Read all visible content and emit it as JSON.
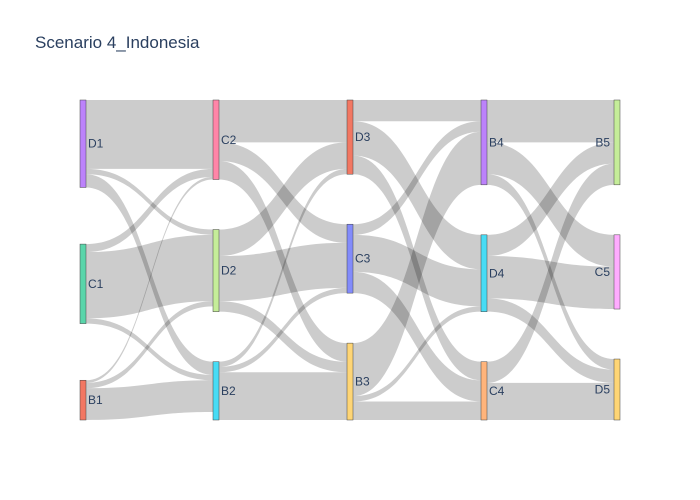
{
  "chart_data": {
    "type": "sankey",
    "title": "Scenario 4_Indonesia",
    "link_color": "#000000",
    "link_opacity": 0.2,
    "columns": [
      [
        "D1",
        "C1",
        "B1"
      ],
      [
        "C2",
        "D2",
        "B2"
      ],
      [
        "D3",
        "C3",
        "B3"
      ],
      [
        "B4",
        "D4",
        "C4"
      ],
      [
        "B5",
        "C5",
        "D5"
      ]
    ],
    "nodes": [
      {
        "name": "D1",
        "color": "#ab63fa"
      },
      {
        "name": "C1",
        "color": "#2fcb95"
      },
      {
        "name": "B1",
        "color": "#ef553b"
      },
      {
        "name": "C2",
        "color": "#ff6692"
      },
      {
        "name": "D2",
        "color": "#b6e880"
      },
      {
        "name": "B2",
        "color": "#19d3f3"
      },
      {
        "name": "D3",
        "color": "#ef553b"
      },
      {
        "name": "C3",
        "color": "#636efa"
      },
      {
        "name": "B3",
        "color": "#fecb52"
      },
      {
        "name": "B4",
        "color": "#ab63fa"
      },
      {
        "name": "D4",
        "color": "#19d3f3"
      },
      {
        "name": "C4",
        "color": "#ffa15a"
      },
      {
        "name": "B5",
        "color": "#b6e880"
      },
      {
        "name": "C5",
        "color": "#ff97ff"
      },
      {
        "name": "D5",
        "color": "#fecb52"
      }
    ],
    "links": [
      {
        "source": "D1",
        "target": "C2",
        "value": 26
      },
      {
        "source": "D1",
        "target": "D2",
        "value": 2
      },
      {
        "source": "D1",
        "target": "B2",
        "value": 5
      },
      {
        "source": "C1",
        "target": "C2",
        "value": 3
      },
      {
        "source": "C1",
        "target": "D2",
        "value": 25
      },
      {
        "source": "C1",
        "target": "B2",
        "value": 2
      },
      {
        "source": "B1",
        "target": "C2",
        "value": 1
      },
      {
        "source": "B1",
        "target": "D2",
        "value": 2
      },
      {
        "source": "B1",
        "target": "B2",
        "value": 12
      },
      {
        "source": "C2",
        "target": "D3",
        "value": 16
      },
      {
        "source": "C2",
        "target": "C3",
        "value": 7
      },
      {
        "source": "C2",
        "target": "B3",
        "value": 7
      },
      {
        "source": "D2",
        "target": "D3",
        "value": 10
      },
      {
        "source": "D2",
        "target": "C3",
        "value": 17
      },
      {
        "source": "D2",
        "target": "B3",
        "value": 4
      },
      {
        "source": "B2",
        "target": "D3",
        "value": 2
      },
      {
        "source": "B2",
        "target": "C3",
        "value": 2
      },
      {
        "source": "B2",
        "target": "B3",
        "value": 18
      },
      {
        "source": "D3",
        "target": "B4",
        "value": 8
      },
      {
        "source": "D3",
        "target": "D4",
        "value": 13
      },
      {
        "source": "D3",
        "target": "C4",
        "value": 7
      },
      {
        "source": "C3",
        "target": "B4",
        "value": 4
      },
      {
        "source": "C3",
        "target": "D4",
        "value": 14
      },
      {
        "source": "C3",
        "target": "C4",
        "value": 8
      },
      {
        "source": "B3",
        "target": "B4",
        "value": 20
      },
      {
        "source": "B3",
        "target": "D4",
        "value": 2
      },
      {
        "source": "B3",
        "target": "C4",
        "value": 7
      },
      {
        "source": "B4",
        "target": "B5",
        "value": 16
      },
      {
        "source": "B4",
        "target": "C5",
        "value": 12
      },
      {
        "source": "B4",
        "target": "D5",
        "value": 4
      },
      {
        "source": "D4",
        "target": "B5",
        "value": 8
      },
      {
        "source": "D4",
        "target": "C5",
        "value": 16
      },
      {
        "source": "D4",
        "target": "D5",
        "value": 5
      },
      {
        "source": "C4",
        "target": "B5",
        "value": 8
      },
      {
        "source": "C4",
        "target": "C5",
        "value": 0
      },
      {
        "source": "C4",
        "target": "D5",
        "value": 14
      }
    ]
  }
}
